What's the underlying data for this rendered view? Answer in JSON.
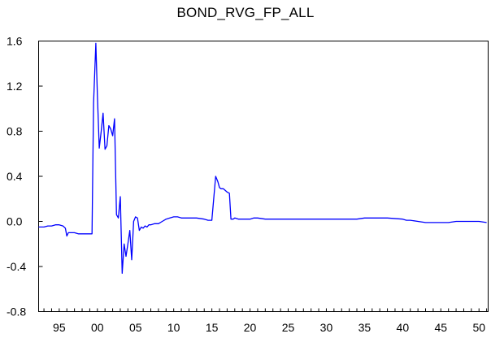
{
  "chart_data": {
    "type": "line",
    "title": "BOND_RVG_FP_ALL",
    "xlabel": "",
    "ylabel": "",
    "xlim": [
      1992.3,
      2051.2
    ],
    "ylim": [
      -0.8,
      1.6
    ],
    "grid": false,
    "y_ticks": [
      -0.8,
      -0.4,
      0.0,
      0.4,
      0.8,
      1.2,
      1.6
    ],
    "y_tick_labels": [
      "-0.8",
      "-0.4",
      "0.0",
      "0.4",
      "0.8",
      "1.2",
      "1.6"
    ],
    "x_ticks": [
      1995,
      2000,
      2005,
      2010,
      2015,
      2020,
      2025,
      2030,
      2035,
      2040,
      2045,
      2050
    ],
    "x_tick_labels": [
      "95",
      "00",
      "05",
      "10",
      "15",
      "20",
      "25",
      "30",
      "35",
      "40",
      "45",
      "50"
    ],
    "line_color": "#0000ff",
    "series": [
      {
        "x": [
          1992.3,
          1993.0,
          1993.5,
          1994.0,
          1994.5,
          1995.0,
          1995.5,
          1995.8,
          1996.0,
          1996.2,
          1996.5,
          1997.0,
          1997.5,
          1998.0,
          1998.5,
          1999.0,
          1999.3,
          1999.5,
          1999.8,
          2000.0,
          2000.25,
          2000.5,
          2000.75,
          2001.0,
          2001.25,
          2001.5,
          2001.75,
          2002.0,
          2002.25,
          2002.5,
          2002.75,
          2003.0,
          2003.25,
          2003.5,
          2003.75,
          2004.0,
          2004.25,
          2004.5,
          2004.75,
          2005.0,
          2005.25,
          2005.5,
          2005.75,
          2006.0,
          2006.25,
          2006.5,
          2006.75,
          2007.0,
          2007.5,
          2008.0,
          2008.5,
          2009.0,
          2009.5,
          2010.0,
          2010.5,
          2011.0,
          2012.0,
          2013.0,
          2014.0,
          2014.5,
          2015.0,
          2015.5,
          2015.8,
          2016.0,
          2016.2,
          2016.5,
          2017.0,
          2017.3,
          2017.5,
          2017.8,
          2018.0,
          2018.5,
          2019.0,
          2019.5,
          2020.0,
          2020.5,
          2021.0,
          2022.0,
          2025.0,
          2028.0,
          2031.0,
          2032.0,
          2034.0,
          2035.0,
          2036.0,
          2038.0,
          2040.0,
          2040.5,
          2041.0,
          2042.0,
          2043.0,
          2044.0,
          2045.0,
          2046.0,
          2047.0,
          2048.0,
          2049.0,
          2050.0,
          2051.0
        ],
        "y": [
          -0.05,
          -0.05,
          -0.04,
          -0.04,
          -0.03,
          -0.03,
          -0.04,
          -0.06,
          -0.13,
          -0.1,
          -0.1,
          -0.1,
          -0.11,
          -0.11,
          -0.11,
          -0.11,
          -0.11,
          1.05,
          1.58,
          1.12,
          0.65,
          0.8,
          0.96,
          0.64,
          0.67,
          0.85,
          0.82,
          0.76,
          0.91,
          0.06,
          0.03,
          0.22,
          -0.46,
          -0.2,
          -0.31,
          -0.2,
          -0.08,
          -0.34,
          0.0,
          0.04,
          0.03,
          -0.08,
          -0.05,
          -0.06,
          -0.04,
          -0.05,
          -0.03,
          -0.03,
          -0.02,
          -0.02,
          0.0,
          0.02,
          0.03,
          0.04,
          0.04,
          0.03,
          0.03,
          0.03,
          0.02,
          0.01,
          0.01,
          0.4,
          0.35,
          0.3,
          0.29,
          0.29,
          0.26,
          0.25,
          0.02,
          0.02,
          0.03,
          0.02,
          0.02,
          0.02,
          0.02,
          0.03,
          0.03,
          0.02,
          0.02,
          0.02,
          0.02,
          0.02,
          0.02,
          0.03,
          0.03,
          0.03,
          0.02,
          0.01,
          0.01,
          0.0,
          -0.01,
          -0.01,
          -0.01,
          -0.01,
          0.0,
          0.0,
          0.0,
          0.0,
          -0.01
        ]
      }
    ]
  }
}
